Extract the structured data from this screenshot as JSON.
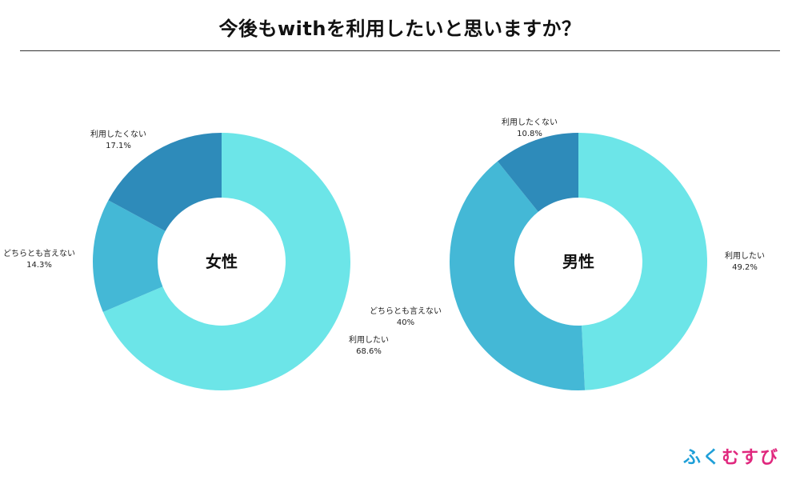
{
  "title": "今後もwithを利用したいと思いますか？",
  "brand": {
    "text": "ふくむすび",
    "colors": [
      "#1e9fd8",
      "#1e9fd8",
      "#e0287e",
      "#e0287e",
      "#e0287e"
    ]
  },
  "chart_data": [
    {
      "type": "pie",
      "center_label": "女性",
      "slices": [
        {
          "label": "利用したい",
          "value": 68.6,
          "value_text": "68.6%",
          "color": "#6ce5e8"
        },
        {
          "label": "どちらとも言えない",
          "value": 14.3,
          "value_text": "14.3%",
          "color": "#44b8d6"
        },
        {
          "label": "利用したくない",
          "value": 17.1,
          "value_text": "17.1%",
          "color": "#2e8bba"
        }
      ]
    },
    {
      "type": "pie",
      "center_label": "男性",
      "slices": [
        {
          "label": "利用したい",
          "value": 49.2,
          "value_text": "49.2%",
          "color": "#6ce5e8"
        },
        {
          "label": "どちらとも言えない",
          "value": 40,
          "value_text": "40%",
          "color": "#44b8d6"
        },
        {
          "label": "利用したくない",
          "value": 10.8,
          "value_text": "10.8%",
          "color": "#2e8bba"
        }
      ]
    }
  ]
}
